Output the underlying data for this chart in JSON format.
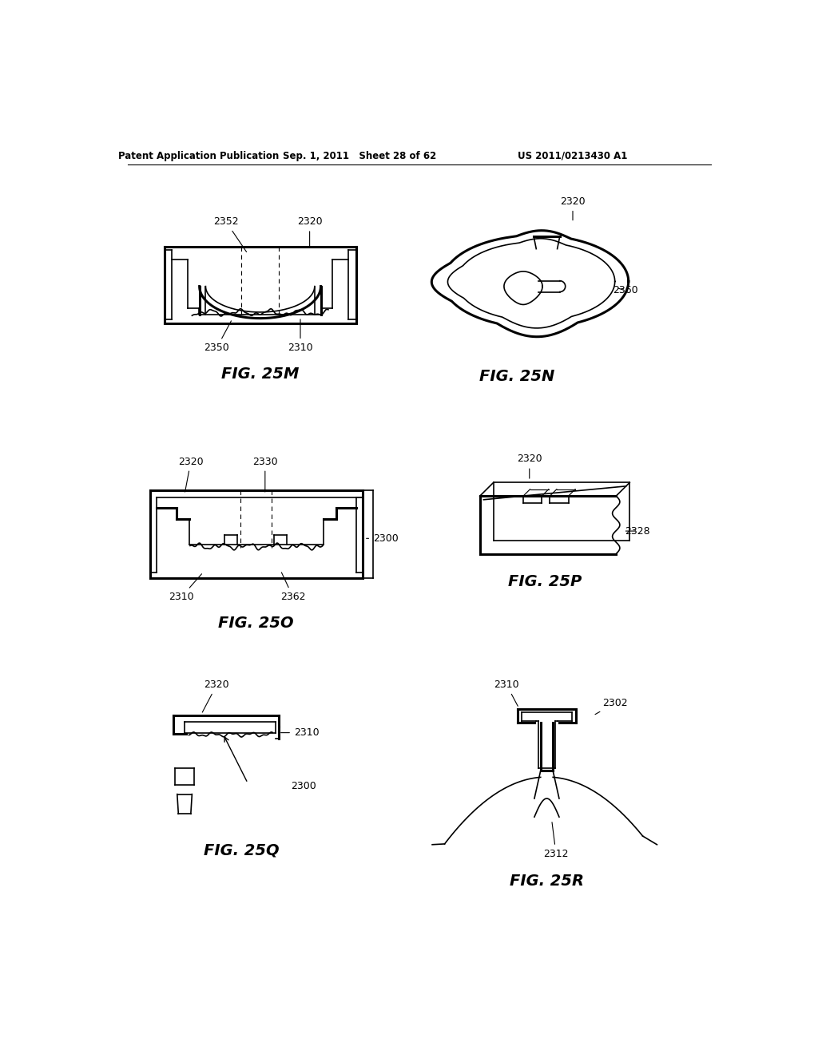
{
  "bg_color": "#ffffff",
  "header_left": "Patent Application Publication",
  "header_mid": "Sep. 1, 2011   Sheet 28 of 62",
  "header_right": "US 2011/0213430 A1",
  "line_color": "#000000",
  "lw_thin": 1.2,
  "lw_thick": 2.2
}
